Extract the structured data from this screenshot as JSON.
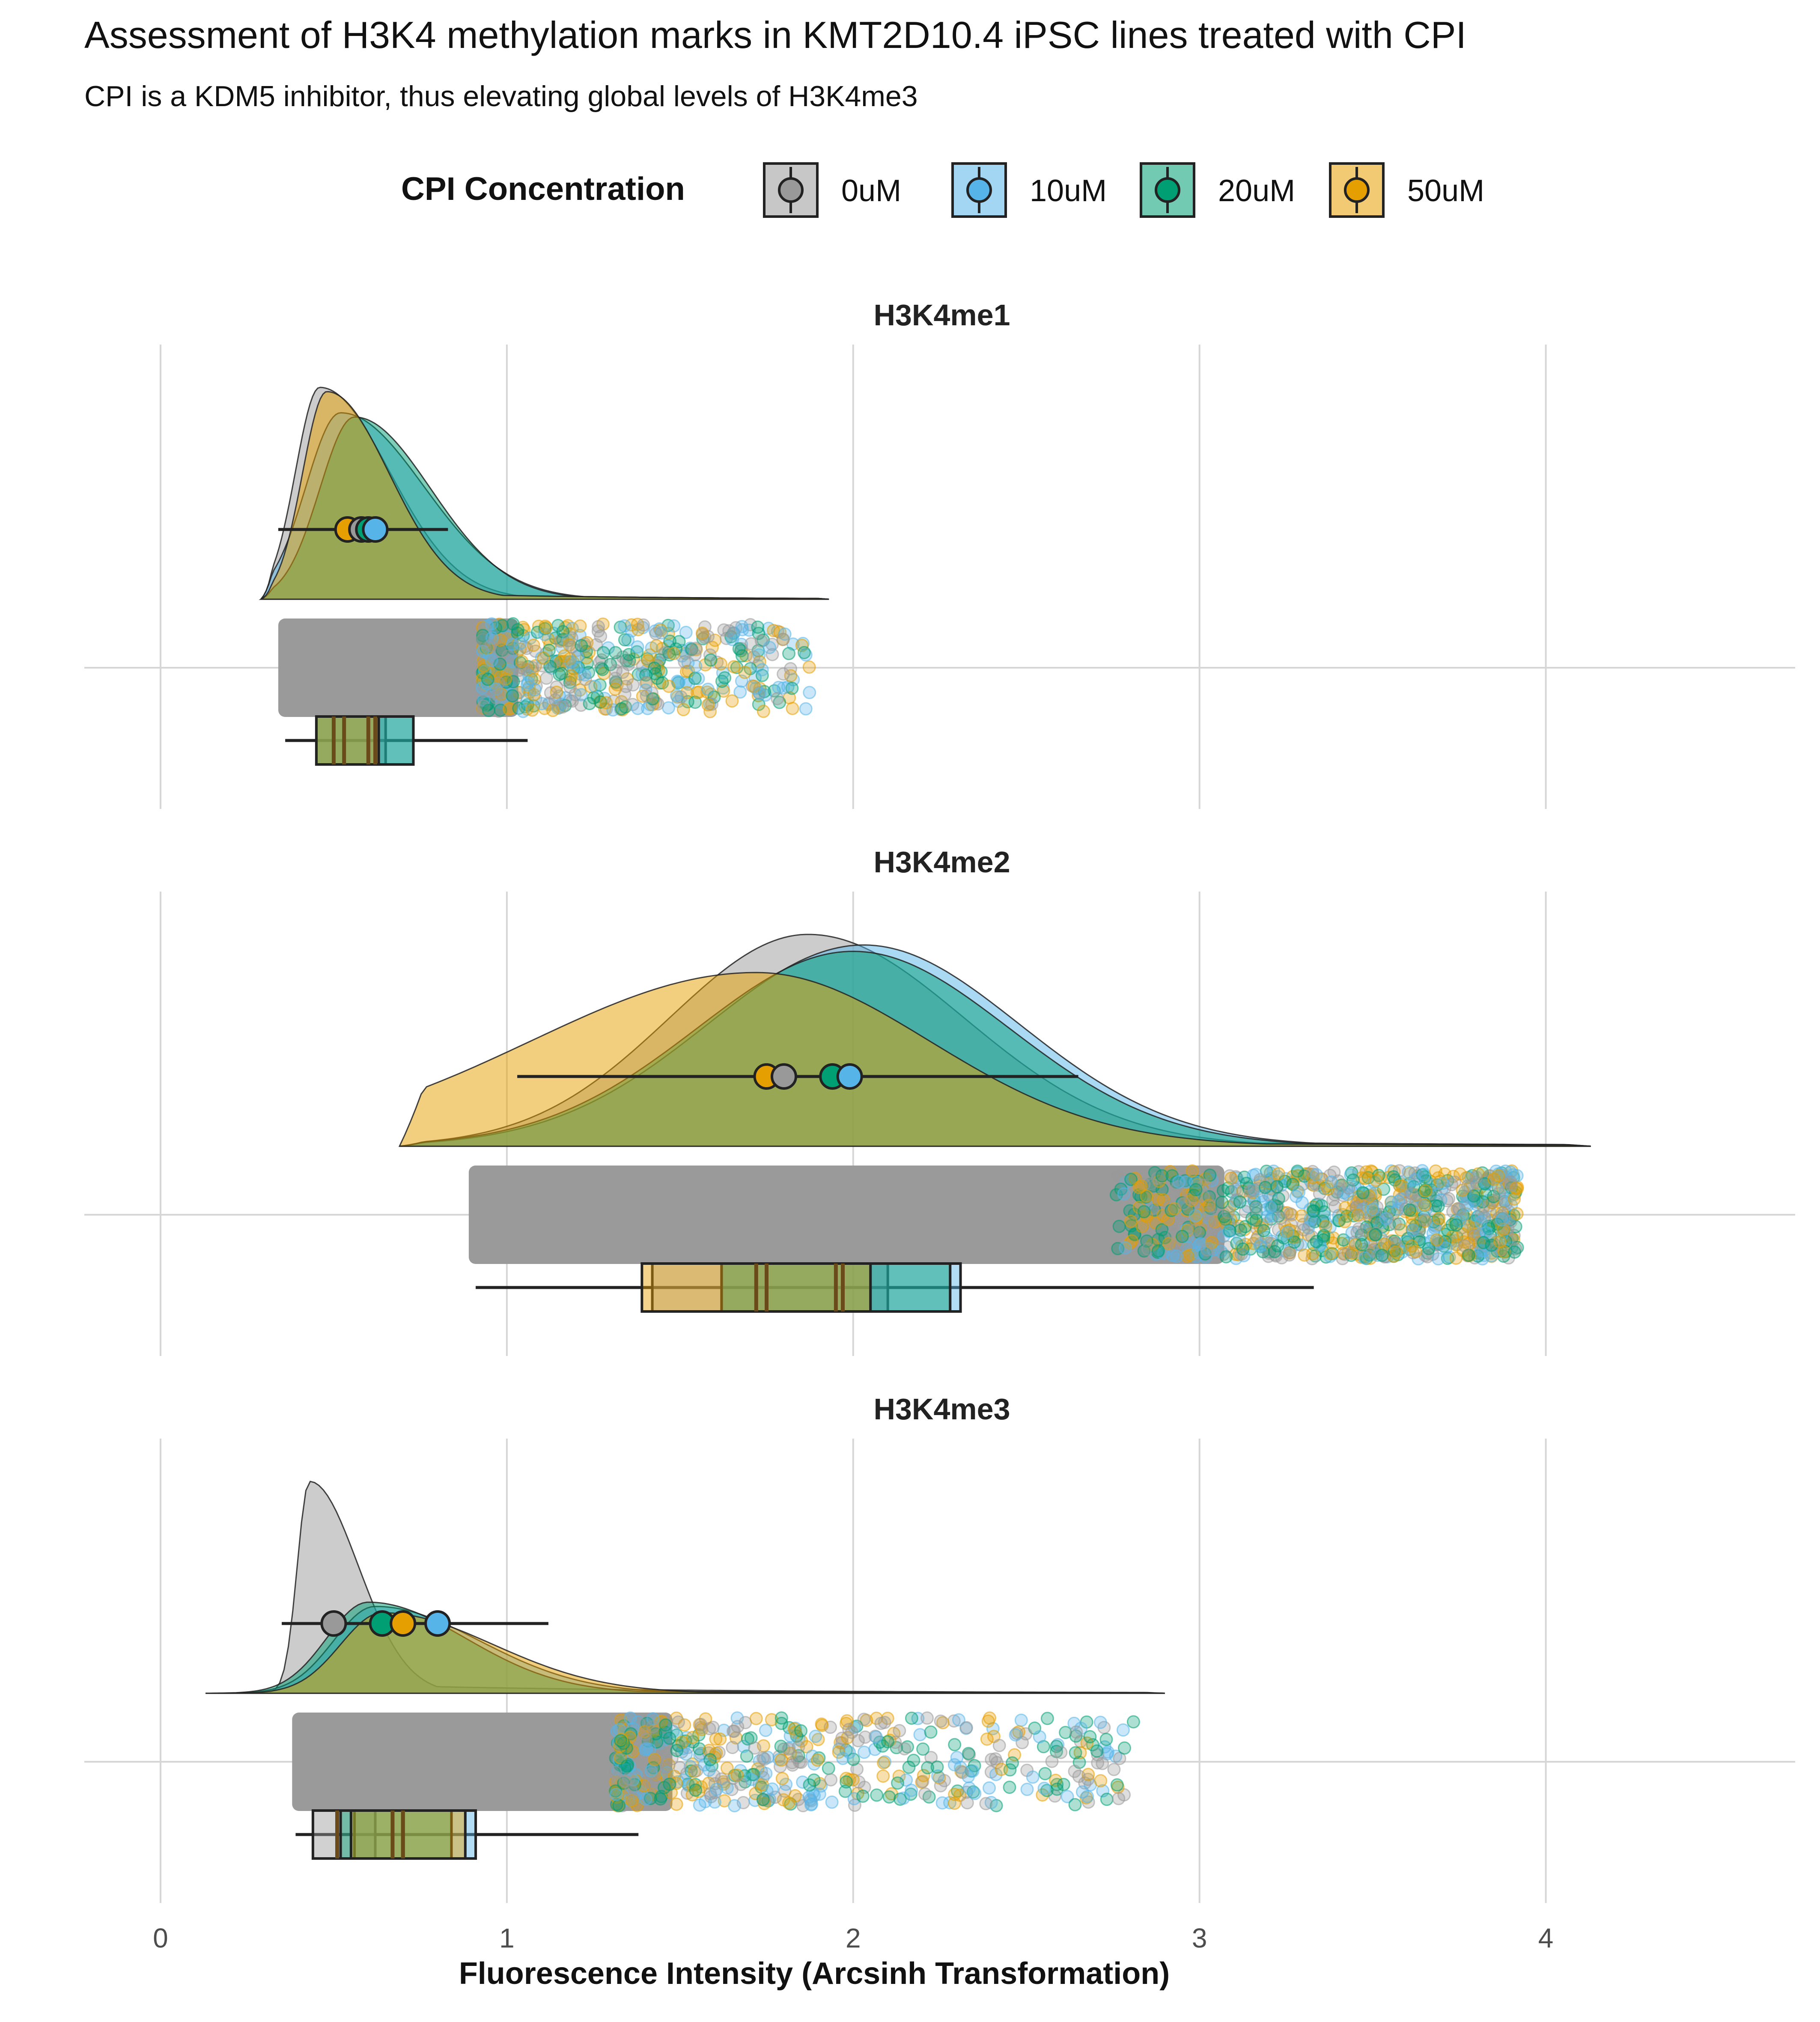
{
  "title": "Assessment of H3K4 methylation marks in KMT2D10.4 iPSC lines treated with CPI",
  "subtitle": "CPI is a KDM5 inhibitor, thus elevating global levels of H3K4me3",
  "legend": {
    "title": "CPI Concentration",
    "items": [
      {
        "label": "0uM",
        "color": "#999999"
      },
      {
        "label": "10uM",
        "color": "#56B4E9"
      },
      {
        "label": "20uM",
        "color": "#009E73"
      },
      {
        "label": "50uM",
        "color": "#E69F00"
      }
    ]
  },
  "chart_data": {
    "type": "raincloud",
    "xlabel": "Fluorescence Intensity (Arcsinh Transformation)",
    "xlim": [
      -0.22,
      4.72
    ],
    "xticks": [
      0,
      1,
      2,
      3,
      4
    ],
    "xtick_labels": [
      "0",
      "1",
      "2",
      "3",
      "4"
    ],
    "groups": [
      "0uM",
      "10uM",
      "20uM",
      "50uM"
    ],
    "panels": [
      {
        "title": "H3K4me1",
        "density_range": [
          0.29,
          1.93
        ],
        "density_peak": [
          {
            "group": "0uM",
            "peak": 0.46,
            "left_sd": 0.07,
            "right_sd": 0.2,
            "height": 1.0
          },
          {
            "group": "10uM",
            "peak": 0.52,
            "left_sd": 0.1,
            "right_sd": 0.24,
            "height": 0.88
          },
          {
            "group": "20uM",
            "peak": 0.56,
            "left_sd": 0.1,
            "right_sd": 0.22,
            "height": 0.86
          },
          {
            "group": "50uM",
            "peak": 0.48,
            "left_sd": 0.07,
            "right_sd": 0.18,
            "height": 0.98
          }
        ],
        "means": [
          {
            "group": "0uM",
            "mean": 0.58
          },
          {
            "group": "10uM",
            "mean": 0.62
          },
          {
            "group": "20uM",
            "mean": 0.6
          },
          {
            "group": "50uM",
            "mean": 0.54
          }
        ],
        "mean_errorbar": [
          0.34,
          0.83
        ],
        "jitter_range": [
          0.34,
          1.88
        ],
        "boxplots": [
          {
            "group": "0uM",
            "q1": 0.45,
            "median": 0.53,
            "q3": 0.65
          },
          {
            "group": "10uM",
            "q1": 0.45,
            "median": 0.62,
            "q3": 0.73
          },
          {
            "group": "20uM",
            "q1": 0.45,
            "median": 0.6,
            "q3": 0.73
          },
          {
            "group": "50uM",
            "q1": 0.45,
            "median": 0.5,
            "q3": 0.63
          }
        ],
        "whiskers": [
          0.36,
          1.06
        ]
      },
      {
        "title": "H3K4me2",
        "density_range": [
          0.69,
          4.13
        ],
        "density_peak": [
          {
            "group": "0uM",
            "peak": 1.87,
            "left_sd": 0.4,
            "right_sd": 0.45,
            "height": 1.0
          },
          {
            "group": "10uM",
            "peak": 2.03,
            "left_sd": 0.45,
            "right_sd": 0.45,
            "height": 0.95
          },
          {
            "group": "20uM",
            "peak": 2.0,
            "left_sd": 0.45,
            "right_sd": 0.45,
            "height": 0.92
          },
          {
            "group": "50uM",
            "peak": 1.72,
            "left_sd": 0.65,
            "right_sd": 0.5,
            "height": 0.82
          }
        ],
        "means": [
          {
            "group": "0uM",
            "mean": 1.8
          },
          {
            "group": "10uM",
            "mean": 1.99
          },
          {
            "group": "20uM",
            "mean": 1.94
          },
          {
            "group": "50uM",
            "mean": 1.75
          }
        ],
        "mean_errorbar": [
          1.03,
          2.65
        ],
        "jitter_range": [
          0.89,
          3.92
        ],
        "boxplots": [
          {
            "group": "0uM",
            "q1": 1.42,
            "median": 1.75,
            "q3": 2.1
          },
          {
            "group": "10uM",
            "q1": 1.62,
            "median": 1.97,
            "q3": 2.31
          },
          {
            "group": "20uM",
            "q1": 1.62,
            "median": 1.95,
            "q3": 2.28
          },
          {
            "group": "50uM",
            "q1": 1.39,
            "median": 1.72,
            "q3": 2.05
          }
        ],
        "whiskers": [
          0.91,
          3.33
        ]
      },
      {
        "title": "H3K4me3",
        "density_range": [
          0.13,
          2.9
        ],
        "density_peak": [
          {
            "group": "0uM",
            "peak": 0.43,
            "left_sd": 0.035,
            "right_sd": 0.14,
            "height": 1.0
          },
          {
            "group": "10uM",
            "peak": 0.62,
            "left_sd": 0.12,
            "right_sd": 0.3,
            "height": 0.41
          },
          {
            "group": "20uM",
            "peak": 0.6,
            "left_sd": 0.12,
            "right_sd": 0.28,
            "height": 0.43
          },
          {
            "group": "50uM",
            "peak": 0.64,
            "left_sd": 0.12,
            "right_sd": 0.32,
            "height": 0.38
          }
        ],
        "means": [
          {
            "group": "0uM",
            "mean": 0.5
          },
          {
            "group": "10uM",
            "mean": 0.8
          },
          {
            "group": "20uM",
            "mean": 0.64
          },
          {
            "group": "50uM",
            "mean": 0.7
          }
        ],
        "mean_errorbar": [
          0.35,
          1.12
        ],
        "jitter_range": [
          0.38,
          2.82
        ],
        "boxplots": [
          {
            "group": "0uM",
            "q1": 0.44,
            "median": 0.51,
            "q3": 0.62
          },
          {
            "group": "10uM",
            "q1": 0.56,
            "median": 0.7,
            "q3": 0.91
          },
          {
            "group": "20uM",
            "q1": 0.52,
            "median": 0.67,
            "q3": 0.84
          },
          {
            "group": "50uM",
            "q1": 0.55,
            "median": 0.7,
            "q3": 0.88
          }
        ],
        "whiskers": [
          0.39,
          1.38
        ]
      }
    ]
  }
}
